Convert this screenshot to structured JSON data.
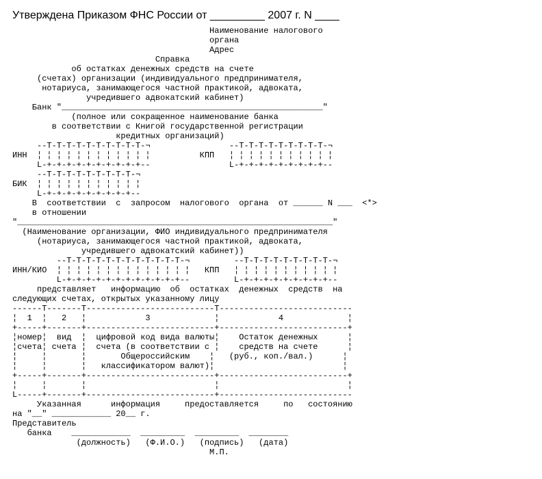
{
  "heading": "Утверждена Приказом ФНС России от _________ 2007 г. N ____",
  "body": "                                        Наименование налогового\n                                        органа\n                                        Адрес\n                             Справка\n            об остатках денежных средств на счете\n     (счетах) организации (индивидуального предпринимателя,\n      нотариуса, занимающегося частной практикой, адвоката,\n               учредившего адвокатский кабинет)\n    Банк \"_____________________________________________________\"\n            (полное или сокращенное наименование банка\n        в соответствии с Книгой государственной регистрации\n                     кредитных организаций)\n     --T-T-T-T-T-T-T-T-T-T-¬                --T-T-T-T-T-T-T-T-T-¬\nИНН  ¦ ¦ ¦ ¦ ¦ ¦ ¦ ¦ ¦ ¦ ¦ ¦          КПП   ¦ ¦ ¦ ¦ ¦ ¦ ¦ ¦ ¦ ¦ ¦\n     L-+-+-+-+-+-+-+-+-+-+--                L-+-+-+-+-+-+-+-+-+--\n     --T-T-T-T-T-T-T-T-T-¬\nБИК  ¦ ¦ ¦ ¦ ¦ ¦ ¦ ¦ ¦ ¦ ¦\n     L-+-+-+-+-+-+-+-+-+--\n    В  соответствии  с  запросом  налогового  органа  от ______ N ___  <*>\n    в отношении\n\"________________________________________________________________\"\n  (Наименование организации, ФИО индивидуального предпринимателя\n     (нотариуса, занимающегося частной практикой, адвоката,\n              учредившего адвокатский кабинет))\n         --T-T-T-T-T-T-T-T-T-T-T-T-¬         --T-T-T-T-T-T-T-T-T-¬\nИНН/КИО  ¦ ¦ ¦ ¦ ¦ ¦ ¦ ¦ ¦ ¦ ¦ ¦ ¦ ¦   КПП   ¦ ¦ ¦ ¦ ¦ ¦ ¦ ¦ ¦ ¦ ¦\n         L-+-+-+-+-+-+-+-+-+-+-+-+--         L-+-+-+-+-+-+-+-+-+--\n     представляет   информацию  об  остатках  денежных  средств  на\nследующих счетах, открытых указанному лицу\n------T-------T--------------------------T---------------------------\n¦  1  ¦   2   ¦            3             ¦            4             ¦\n+-----+-------+--------------------------+--------------------------+\n¦номер¦  вид  ¦  цифровой код вида валюты¦    Остаток денежных      ¦\n¦счета¦ счета ¦  счета (в соответствии с ¦    средств на счете      ¦\n¦     ¦       ¦       Общероссийским    ¦   (руб., коп./вал.)      ¦\n¦     ¦       ¦   классификатором валют)¦                          ¦\n+-----+-------+--------------------------+--------------------------+\n¦     ¦       ¦                          ¦                          ¦\nL-----+-------+--------------------------+---------------------------\n     Указанная      информация     предоставляется     по   состоянию\nна \"__\" ____________ 20__ г.\nПредставитель\n   банка    ____________  _________  _________  ________\n             (должность)   (Ф.И.О.)   (подпись)   (дата)\n                                        М.П."
}
